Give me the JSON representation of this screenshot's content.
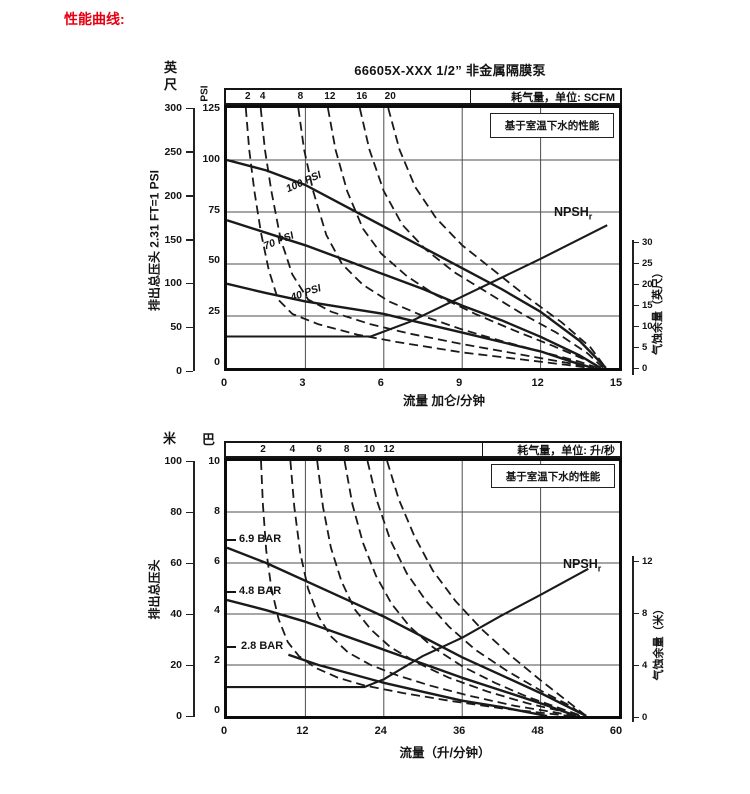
{
  "heading": {
    "text": "性能曲线:",
    "color": "#e60012"
  },
  "ink_color": "#1a1a1a",
  "chart_data": [
    {
      "type": "line",
      "title": "66605X-XXX 1/2” 非金属隔膜泵",
      "note": "基于室温下水的性能",
      "air_label": "耗气量，单位: SCFM",
      "x_label": "流量 加仑/分钟",
      "y_label": "排出总压头 2.31 FT=1 PSI",
      "right_label": "气蚀余量（英尺）",
      "unit_primary": "英尺",
      "unit_secondary": "PSI",
      "x_range": [
        0,
        15
      ],
      "y_range_secondary": [
        0,
        125
      ],
      "y_range_primary": [
        0,
        300
      ],
      "right_range": [
        0,
        30
      ],
      "x_ticks": [
        "0",
        "3",
        "6",
        "9",
        "12",
        "15"
      ],
      "y_ticks_primary": [
        "300",
        "250",
        "200",
        "150",
        "100",
        "50",
        "0"
      ],
      "y_ticks_secondary": [
        "125",
        "100",
        "75",
        "50",
        "25",
        "0"
      ],
      "right_ticks": [
        "30",
        "25",
        "20",
        "15",
        "10",
        "5",
        "0"
      ],
      "npsh_label": {
        "text": "NPSH",
        "sub": "r"
      },
      "pressure_curves": [
        {
          "label": "100 PSI",
          "points": [
            [
              0,
              100
            ],
            [
              1.5,
              95
            ],
            [
              3,
              88
            ],
            [
              4.5,
              78
            ],
            [
              6,
              68
            ],
            [
              7.5,
              58
            ],
            [
              9,
              48
            ],
            [
              10.5,
              38
            ],
            [
              12,
              27
            ],
            [
              13.5,
              13
            ],
            [
              14.5,
              0
            ]
          ]
        },
        {
          "label": "70 PSI",
          "points": [
            [
              0,
              71
            ],
            [
              1.5,
              65
            ],
            [
              3,
              59
            ],
            [
              4.5,
              52
            ],
            [
              6,
              45
            ],
            [
              7.5,
              38
            ],
            [
              9,
              30
            ],
            [
              10.5,
              23
            ],
            [
              12,
              15
            ],
            [
              13.5,
              6
            ],
            [
              14.3,
              0
            ]
          ]
        },
        {
          "label": "40 PSI",
          "points": [
            [
              0,
              40.5
            ],
            [
              1.5,
              36
            ],
            [
              3,
              32
            ],
            [
              4.5,
              29
            ],
            [
              6,
              26
            ],
            [
              7.5,
              21.5
            ],
            [
              9,
              17
            ],
            [
              10.5,
              12.5
            ],
            [
              12,
              8
            ],
            [
              13.2,
              3
            ],
            [
              14,
              0
            ]
          ]
        }
      ],
      "air_curves": [
        {
          "label": "2",
          "points": [
            [
              0.72,
              125
            ],
            [
              0.85,
              105
            ],
            [
              1.05,
              85
            ],
            [
              1.3,
              65
            ],
            [
              1.6,
              47
            ],
            [
              1.95,
              33
            ],
            [
              2.5,
              26
            ],
            [
              3.5,
              21
            ],
            [
              5,
              16
            ],
            [
              6.5,
              12.5
            ],
            [
              9,
              7.5
            ],
            [
              11,
              4.5
            ],
            [
              13,
              1.5
            ],
            [
              13.9,
              0
            ]
          ]
        },
        {
          "label": "4",
          "points": [
            [
              1.29,
              125
            ],
            [
              1.45,
              105
            ],
            [
              1.7,
              85
            ],
            [
              2.05,
              62
            ],
            [
              2.5,
              45
            ],
            [
              3.1,
              33
            ],
            [
              4,
              27
            ],
            [
              5.5,
              21
            ],
            [
              7,
              16.5
            ],
            [
              9,
              11.5
            ],
            [
              11,
              7
            ],
            [
              13,
              2.5
            ],
            [
              14.05,
              0
            ]
          ]
        },
        {
          "label": "8",
          "points": [
            [
              2.73,
              125
            ],
            [
              2.95,
              105
            ],
            [
              3.3,
              85
            ],
            [
              3.8,
              64
            ],
            [
              4.4,
              50
            ],
            [
              5.2,
              40
            ],
            [
              6.2,
              32
            ],
            [
              7.5,
              25
            ],
            [
              9,
              18.5
            ],
            [
              10.5,
              13
            ],
            [
              12,
              8
            ],
            [
              13.5,
              3
            ],
            [
              14.2,
              0
            ]
          ]
        },
        {
          "label": "12",
          "points": [
            [
              3.86,
              125
            ],
            [
              4.15,
              105
            ],
            [
              4.6,
              85
            ],
            [
              5.2,
              67
            ],
            [
              5.9,
              55
            ],
            [
              6.9,
              44
            ],
            [
              8,
              35
            ],
            [
              9.5,
              26
            ],
            [
              11,
              18
            ],
            [
              12.5,
              10.5
            ],
            [
              13.8,
              3.5
            ],
            [
              14.3,
              0
            ]
          ]
        },
        {
          "label": "16",
          "points": [
            [
              5.08,
              125
            ],
            [
              5.45,
              105
            ],
            [
              6,
              85
            ],
            [
              6.7,
              69
            ],
            [
              7.6,
              57
            ],
            [
              8.7,
              46
            ],
            [
              10,
              36
            ],
            [
              11.3,
              26
            ],
            [
              12.6,
              17
            ],
            [
              13.8,
              7
            ],
            [
              14.4,
              0
            ]
          ]
        },
        {
          "label": "20",
          "points": [
            [
              6.17,
              125
            ],
            [
              6.6,
              105
            ],
            [
              7.2,
              87
            ],
            [
              8,
              72
            ],
            [
              9,
              59
            ],
            [
              10.2,
              47
            ],
            [
              11.5,
              34
            ],
            [
              12.8,
              22
            ],
            [
              13.9,
              10
            ],
            [
              14.5,
              0
            ]
          ]
        }
      ],
      "npsh_curve": {
        "axis": "right",
        "points": [
          [
            0,
            7.5
          ],
          [
            5.5,
            7.5
          ],
          [
            7,
            11
          ],
          [
            9,
            17
          ],
          [
            12,
            26
          ],
          [
            14.55,
            34
          ]
        ]
      }
    },
    {
      "type": "line",
      "title": "",
      "note": "基于室温下水的性能",
      "air_label": "耗气量，单位: 升/秒",
      "x_label": "流量（升/分钟）",
      "y_label": "排出总压头",
      "right_label": "气蚀余量（米）",
      "unit_primary": "米",
      "unit_secondary": "巴",
      "x_range": [
        0,
        60
      ],
      "y_range_secondary": [
        0,
        10
      ],
      "y_range_primary": [
        0,
        100
      ],
      "right_range": [
        0,
        12
      ],
      "x_ticks": [
        "0",
        "12",
        "24",
        "36",
        "48",
        "60"
      ],
      "y_ticks_primary": [
        "100",
        "80",
        "60",
        "40",
        "20",
        "0"
      ],
      "y_ticks_secondary": [
        "10",
        "8",
        "6",
        "4",
        "2",
        "0"
      ],
      "right_ticks": [
        "12",
        "8",
        "4",
        "0"
      ],
      "npsh_label": {
        "text": "NPSH",
        "sub": "r"
      },
      "pressure_curves": [
        {
          "label": "6.9 BAR",
          "points": [
            [
              0,
              6.6
            ],
            [
              6,
              6.0
            ],
            [
              12,
              5.3
            ],
            [
              18,
              4.6
            ],
            [
              24,
              3.9
            ],
            [
              30,
              3.1
            ],
            [
              36,
              2.3
            ],
            [
              42,
              1.6
            ],
            [
              48,
              0.9
            ],
            [
              55,
              0
            ]
          ]
        },
        {
          "label": "4.8 BAR",
          "points": [
            [
              0,
              4.55
            ],
            [
              6,
              4.15
            ],
            [
              12,
              3.7
            ],
            [
              18,
              3.15
            ],
            [
              24,
              2.6
            ],
            [
              30,
              2.05
            ],
            [
              36,
              1.5
            ],
            [
              42,
              1.0
            ],
            [
              48,
              0.5
            ],
            [
              53.5,
              0
            ]
          ]
        },
        {
          "label": "2.8 BAR",
          "points": [
            [
              9.4,
              2.4
            ],
            [
              14,
              2.0
            ],
            [
              19,
              1.65
            ],
            [
              24,
              1.3
            ],
            [
              30,
              0.95
            ],
            [
              36,
              0.6
            ],
            [
              42,
              0.35
            ],
            [
              49,
              0
            ]
          ]
        }
      ],
      "air_curves": [
        {
          "label": "2",
          "points": [
            [
              5.2,
              10
            ],
            [
              5.5,
              8.3
            ],
            [
              6,
              6.5
            ],
            [
              6.8,
              5.0
            ],
            [
              7.9,
              3.8
            ],
            [
              9.3,
              2.9
            ],
            [
              11,
              2.35
            ],
            [
              13.5,
              1.9
            ],
            [
              17,
              1.5
            ],
            [
              21,
              1.2
            ],
            [
              27,
              0.9
            ],
            [
              34,
              0.6
            ],
            [
              42,
              0.3
            ],
            [
              49,
              0.1
            ],
            [
              52.5,
              0
            ]
          ]
        },
        {
          "label": "4",
          "points": [
            [
              9.7,
              10
            ],
            [
              10.3,
              8.2
            ],
            [
              11.2,
              6.4
            ],
            [
              12.4,
              5.0
            ],
            [
              14,
              3.9
            ],
            [
              16,
              3.1
            ],
            [
              18.5,
              2.5
            ],
            [
              22,
              2.0
            ],
            [
              26,
              1.6
            ],
            [
              31,
              1.2
            ],
            [
              37,
              0.8
            ],
            [
              44,
              0.4
            ],
            [
              50,
              0.15
            ],
            [
              53.2,
              0
            ]
          ]
        },
        {
          "label": "6",
          "points": [
            [
              13.8,
              10
            ],
            [
              14.7,
              8.2
            ],
            [
              15.9,
              6.6
            ],
            [
              17.5,
              5.3
            ],
            [
              19.5,
              4.2
            ],
            [
              22,
              3.4
            ],
            [
              25,
              2.7
            ],
            [
              29,
              2.1
            ],
            [
              34,
              1.5
            ],
            [
              40,
              0.95
            ],
            [
              46,
              0.5
            ],
            [
              51,
              0.2
            ],
            [
              54,
              0
            ]
          ]
        },
        {
          "label": "8",
          "points": [
            [
              18,
              10
            ],
            [
              19.2,
              8.3
            ],
            [
              20.8,
              6.8
            ],
            [
              22.8,
              5.5
            ],
            [
              25.2,
              4.4
            ],
            [
              28,
              3.5
            ],
            [
              31.5,
              2.7
            ],
            [
              36,
              1.95
            ],
            [
              41,
              1.3
            ],
            [
              46,
              0.75
            ],
            [
              51,
              0.3
            ],
            [
              54.3,
              0
            ]
          ]
        },
        {
          "label": "10",
          "points": [
            [
              21.5,
              10
            ],
            [
              23,
              8.4
            ],
            [
              25,
              6.9
            ],
            [
              27.5,
              5.6
            ],
            [
              30.5,
              4.5
            ],
            [
              34,
              3.5
            ],
            [
              38,
              2.6
            ],
            [
              43,
              1.75
            ],
            [
              48,
              1.0
            ],
            [
              52.5,
              0.4
            ],
            [
              54.7,
              0
            ]
          ]
        },
        {
          "label": "12",
          "points": [
            [
              24.5,
              10
            ],
            [
              26.3,
              8.5
            ],
            [
              28.6,
              7.1
            ],
            [
              31.5,
              5.7
            ],
            [
              35,
              4.5
            ],
            [
              39,
              3.4
            ],
            [
              43.5,
              2.35
            ],
            [
              48,
              1.4
            ],
            [
              52,
              0.6
            ],
            [
              55,
              0
            ]
          ]
        }
      ],
      "npsh_curve": {
        "axis": "right",
        "points": [
          [
            0,
            2.3
          ],
          [
            21,
            2.3
          ],
          [
            24,
            2.9
          ],
          [
            30,
            4.7
          ],
          [
            36,
            6.1
          ],
          [
            42,
            7.8
          ],
          [
            48,
            9.4
          ],
          [
            55.3,
            11.4
          ]
        ]
      }
    }
  ]
}
